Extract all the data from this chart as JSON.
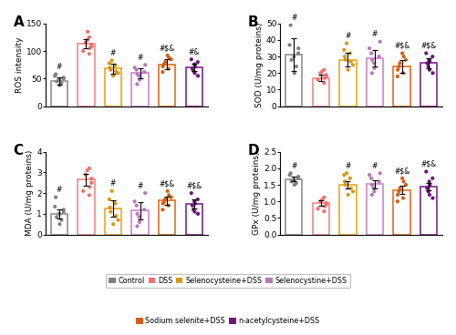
{
  "groups": [
    "Control",
    "DSS",
    "Selenocysteine+DSS",
    "Selenocystine+DSS",
    "Sodium selenite+DSS",
    "n-acetylcysteine+DSS"
  ],
  "bar_fill": [
    "#FFFFFF",
    "#FFFFFF",
    "#FFFFFF",
    "#FFFFFF",
    "#FFFFFF",
    "#FFFFFF"
  ],
  "colors": [
    "#909090",
    "#F08888",
    "#E8A820",
    "#CC88CC",
    "#E07020",
    "#7B2888"
  ],
  "dot_colors": [
    "#808080",
    "#F07070",
    "#D89818",
    "#BB77BB",
    "#D06018",
    "#6A1878"
  ],
  "panel_labels": [
    "A",
    "B",
    "C",
    "D"
  ],
  "ROS": {
    "ylabel": "ROS intensity",
    "ylim": [
      0,
      150
    ],
    "yticks": [
      0,
      50,
      100,
      150
    ],
    "bar_means": [
      46,
      113,
      68,
      60,
      76,
      70
    ],
    "bar_errors": [
      7,
      8,
      9,
      9,
      9,
      7
    ],
    "sig_labels": [
      "#",
      "",
      "#",
      "#",
      "#$&",
      "#&"
    ],
    "dots": [
      [
        38,
        42,
        45,
        48,
        50,
        52,
        55,
        58
      ],
      [
        95,
        100,
        105,
        108,
        112,
        115,
        120,
        125,
        135
      ],
      [
        55,
        60,
        63,
        66,
        70,
        74,
        78,
        83
      ],
      [
        40,
        48,
        55,
        58,
        62,
        66,
        70,
        75
      ],
      [
        62,
        68,
        72,
        76,
        80,
        85,
        88,
        92
      ],
      [
        55,
        60,
        64,
        68,
        72,
        76,
        80,
        85
      ]
    ]
  },
  "SOD": {
    "ylabel": "SOD (U/mg proteins)",
    "ylim": [
      0,
      50
    ],
    "yticks": [
      0,
      10,
      20,
      30,
      40,
      50
    ],
    "bar_means": [
      31,
      17,
      28,
      29,
      24,
      26
    ],
    "bar_errors": [
      10,
      2,
      4,
      5,
      4,
      3
    ],
    "sig_labels": [
      "#",
      "",
      "#",
      "#",
      "#$&",
      "#$&"
    ],
    "dots": [
      [
        20,
        24,
        28,
        30,
        32,
        35,
        37,
        49
      ],
      [
        14,
        16,
        17,
        18,
        19,
        20,
        21,
        22
      ],
      [
        22,
        25,
        27,
        28,
        30,
        32,
        34,
        38
      ],
      [
        20,
        23,
        26,
        28,
        30,
        32,
        35,
        39
      ],
      [
        18,
        20,
        22,
        24,
        26,
        28,
        30,
        32
      ],
      [
        20,
        22,
        24,
        26,
        27,
        28,
        30,
        32
      ]
    ]
  },
  "MDA": {
    "ylabel": "MDA (U/mg proteins)",
    "ylim": [
      0,
      4
    ],
    "yticks": [
      0,
      1,
      2,
      3,
      4
    ],
    "bar_means": [
      1.0,
      2.65,
      1.25,
      1.15,
      1.65,
      1.5
    ],
    "bar_errors": [
      0.22,
      0.3,
      0.4,
      0.42,
      0.2,
      0.22
    ],
    "sig_labels": [
      "#",
      "",
      "#",
      "#",
      "#$&",
      "#$&"
    ],
    "dots": [
      [
        0.5,
        0.7,
        0.85,
        1.0,
        1.1,
        1.2,
        1.35,
        1.8
      ],
      [
        1.9,
        2.1,
        2.3,
        2.5,
        2.7,
        2.9,
        3.1,
        3.2
      ],
      [
        0.5,
        0.7,
        0.9,
        1.1,
        1.3,
        1.5,
        1.7,
        2.1
      ],
      [
        0.4,
        0.6,
        0.85,
        1.0,
        1.2,
        1.4,
        1.6,
        2.0
      ],
      [
        1.2,
        1.4,
        1.5,
        1.6,
        1.7,
        1.8,
        1.9,
        2.1
      ],
      [
        1.0,
        1.1,
        1.2,
        1.4,
        1.5,
        1.6,
        1.7,
        2.0
      ]
    ]
  },
  "GPx": {
    "ylabel": "GPx (U/mg proteins)",
    "ylim": [
      0.0,
      2.5
    ],
    "yticks": [
      0.0,
      0.5,
      1.0,
      1.5,
      2.0,
      2.5
    ],
    "bar_means": [
      1.68,
      0.95,
      1.5,
      1.52,
      1.35,
      1.45
    ],
    "bar_errors": [
      0.07,
      0.08,
      0.12,
      0.12,
      0.12,
      0.12
    ],
    "sig_labels": [
      "#",
      "",
      "#",
      "#",
      "#$&",
      "#$&"
    ],
    "dots": [
      [
        1.5,
        1.55,
        1.6,
        1.65,
        1.7,
        1.75,
        1.8,
        1.85
      ],
      [
        0.7,
        0.78,
        0.85,
        0.9,
        0.95,
        1.0,
        1.05,
        1.12
      ],
      [
        1.2,
        1.3,
        1.4,
        1.5,
        1.6,
        1.7,
        1.8,
        1.85
      ],
      [
        1.2,
        1.3,
        1.4,
        1.5,
        1.6,
        1.7,
        1.8,
        1.85
      ],
      [
        1.0,
        1.1,
        1.2,
        1.3,
        1.4,
        1.5,
        1.6,
        1.7
      ],
      [
        1.1,
        1.2,
        1.3,
        1.4,
        1.5,
        1.6,
        1.7,
        1.9
      ]
    ]
  },
  "legend_row1_labels": [
    "Control",
    "DSS",
    "Selenocysteine+DSS",
    "Selenocystine+DSS"
  ],
  "legend_row2_labels": [
    "Sodium selenite+DSS",
    "n-acetylcysteine+DSS"
  ]
}
